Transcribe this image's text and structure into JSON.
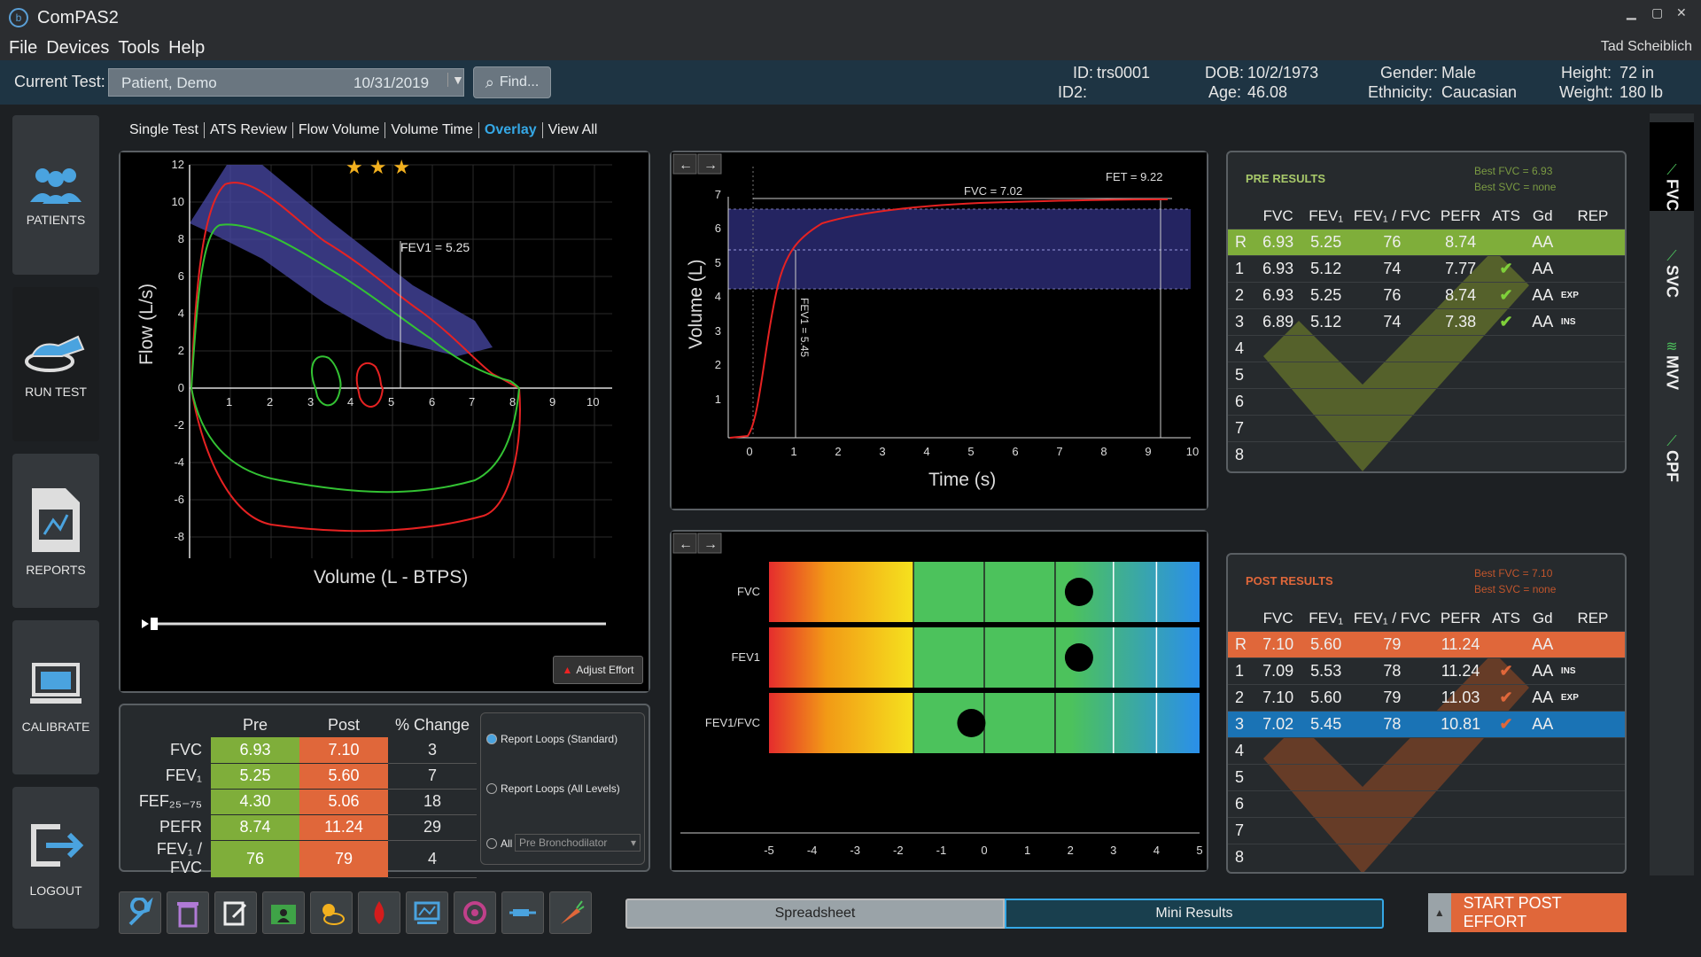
{
  "app": {
    "title": "ComPAS2",
    "user": "Tad Scheiblich"
  },
  "menu": [
    "File",
    "Devices",
    "Tools",
    "Help"
  ],
  "test_selector": {
    "label": "Current Test:",
    "patient": "Patient, Demo",
    "date": "10/31/2019",
    "find_label": "Find..."
  },
  "patient": {
    "id_label": "ID:",
    "id": "trs0001",
    "id2_label": "ID2:",
    "id2": "",
    "dob_label": "DOB:",
    "dob": "10/2/1973",
    "age_label": "Age:",
    "age": "46.08",
    "gender_label": "Gender:",
    "gender": "Male",
    "ethnicity_label": "Ethnicity:",
    "ethnicity": "Caucasian",
    "height_label": "Height:",
    "height": "72 in",
    "weight_label": "Weight:",
    "weight": "180 lb"
  },
  "sidebar": [
    "PATIENTS",
    "RUN TEST",
    "REPORTS",
    "CALIBRATE",
    "LOGOUT"
  ],
  "view_tabs": [
    "Single Test",
    "ATS Review",
    "Flow Volume",
    "Volume Time",
    "Overlay",
    "View All"
  ],
  "active_view_tab": "Overlay",
  "right_tabs": [
    "FVC",
    "SVC",
    "MVV",
    "CPF"
  ],
  "flow_volume": {
    "xlabel": "Volume (L - BTPS)",
    "ylabel": "Flow (L/s)",
    "x_ticks": [
      "1",
      "2",
      "3",
      "4",
      "5",
      "6",
      "7",
      "8",
      "9",
      "10"
    ],
    "y_ticks": [
      "12",
      "10",
      "8",
      "6",
      "4",
      "2",
      "0",
      "-2",
      "-4",
      "-6",
      "-8"
    ],
    "annotation": "FEV1 = 5.25",
    "stars": "★ ★ ★",
    "adjust_label": "Adjust Effort"
  },
  "volume_time": {
    "xlabel": "Time (s)",
    "ylabel": "Volume (L)",
    "x_ticks": [
      "0",
      "1",
      "2",
      "3",
      "4",
      "5",
      "6",
      "7",
      "8",
      "9",
      "10"
    ],
    "y_ticks": [
      "7",
      "6",
      "5",
      "4",
      "3",
      "2",
      "1"
    ],
    "fvc_label": "FVC = 7.02",
    "fet_label": "FET = 9.22",
    "fev1_label": "FEV1 = 5.45"
  },
  "zscore": {
    "rows": [
      "FVC",
      "FEV1",
      "FEV1/FVC"
    ],
    "x_ticks": [
      "-5",
      "-4",
      "-3",
      "-2",
      "-1",
      "0",
      "1",
      "2",
      "3",
      "4",
      "5"
    ],
    "values": [
      2.2,
      2.2,
      -0.3
    ]
  },
  "summary": {
    "headers": [
      "",
      "Pre",
      "Post",
      "% Change"
    ],
    "rows": [
      {
        "name": "FVC",
        "pre": "6.93",
        "post": "7.10",
        "change": "3"
      },
      {
        "name": "FEV₁",
        "pre": "5.25",
        "post": "5.60",
        "change": "7"
      },
      {
        "name": "FEF₂₅₋₇₅",
        "pre": "4.30",
        "post": "5.06",
        "change": "18"
      },
      {
        "name": "PEFR",
        "pre": "8.74",
        "post": "11.24",
        "change": "29"
      },
      {
        "name": "FEV₁ / FVC",
        "pre": "76",
        "post": "79",
        "change": "4"
      }
    ]
  },
  "report_options": {
    "opt1": "Report Loops (Standard)",
    "opt2": "Report Loops (All Levels)",
    "opt3": "All",
    "select": "Pre Bronchodilator"
  },
  "pre_results": {
    "title": "PRE RESULTS",
    "best_fvc": "Best FVC = 6.93",
    "best_svc": "Best SVC = none",
    "headers": [
      "",
      "FVC",
      "FEV₁",
      "FEV₁ / FVC",
      "PEFR",
      "ATS",
      "Gd",
      "REP"
    ],
    "rows": [
      {
        "n": "R",
        "fvc": "6.93",
        "fev1": "5.25",
        "ratio": "76",
        "pefr": "8.74",
        "ats": "",
        "gd": "AA",
        "rep": ""
      },
      {
        "n": "1",
        "fvc": "6.93",
        "fev1": "5.12",
        "ratio": "74",
        "pefr": "7.77",
        "ats": "✔",
        "gd": "AA",
        "rep": ""
      },
      {
        "n": "2",
        "fvc": "6.93",
        "fev1": "5.25",
        "ratio": "76",
        "pefr": "8.74",
        "ats": "✔",
        "gd": "AA",
        "rep": "EXP"
      },
      {
        "n": "3",
        "fvc": "6.89",
        "fev1": "5.12",
        "ratio": "74",
        "pefr": "7.38",
        "ats": "✔",
        "gd": "AA",
        "rep": "INS"
      },
      {
        "n": "4",
        "fvc": "",
        "fev1": "",
        "ratio": "",
        "pefr": "",
        "ats": "",
        "gd": "",
        "rep": ""
      },
      {
        "n": "5",
        "fvc": "",
        "fev1": "",
        "ratio": "",
        "pefr": "",
        "ats": "",
        "gd": "",
        "rep": ""
      },
      {
        "n": "6",
        "fvc": "",
        "fev1": "",
        "ratio": "",
        "pefr": "",
        "ats": "",
        "gd": "",
        "rep": ""
      },
      {
        "n": "7",
        "fvc": "",
        "fev1": "",
        "ratio": "",
        "pefr": "",
        "ats": "",
        "gd": "",
        "rep": ""
      },
      {
        "n": "8",
        "fvc": "",
        "fev1": "",
        "ratio": "",
        "pefr": "",
        "ats": "",
        "gd": "",
        "rep": ""
      }
    ]
  },
  "post_results": {
    "title": "POST RESULTS",
    "best_fvc": "Best FVC = 7.10",
    "best_svc": "Best SVC = none",
    "headers": [
      "",
      "FVC",
      "FEV₁",
      "FEV₁ / FVC",
      "PEFR",
      "ATS",
      "Gd",
      "REP"
    ],
    "rows": [
      {
        "n": "R",
        "fvc": "7.10",
        "fev1": "5.60",
        "ratio": "79",
        "pefr": "11.24",
        "ats": "",
        "gd": "AA",
        "rep": ""
      },
      {
        "n": "1",
        "fvc": "7.09",
        "fev1": "5.53",
        "ratio": "78",
        "pefr": "11.24",
        "ats": "✔",
        "gd": "AA",
        "rep": "INS"
      },
      {
        "n": "2",
        "fvc": "7.10",
        "fev1": "5.60",
        "ratio": "79",
        "pefr": "11.03",
        "ats": "✔",
        "gd": "AA",
        "rep": "EXP"
      },
      {
        "n": "3",
        "fvc": "7.02",
        "fev1": "5.45",
        "ratio": "78",
        "pefr": "10.81",
        "ats": "✔",
        "gd": "AA",
        "rep": ""
      },
      {
        "n": "4",
        "fvc": "",
        "fev1": "",
        "ratio": "",
        "pefr": "",
        "ats": "",
        "gd": "",
        "rep": ""
      },
      {
        "n": "5",
        "fvc": "",
        "fev1": "",
        "ratio": "",
        "pefr": "",
        "ats": "",
        "gd": "",
        "rep": ""
      },
      {
        "n": "6",
        "fvc": "",
        "fev1": "",
        "ratio": "",
        "pefr": "",
        "ats": "",
        "gd": "",
        "rep": ""
      },
      {
        "n": "7",
        "fvc": "",
        "fev1": "",
        "ratio": "",
        "pefr": "",
        "ats": "",
        "gd": "",
        "rep": ""
      },
      {
        "n": "8",
        "fvc": "",
        "fev1": "",
        "ratio": "",
        "pefr": "",
        "ats": "",
        "gd": "",
        "rep": ""
      }
    ]
  },
  "toolbar_icons": [
    "wrench-icon",
    "trash-icon",
    "edit-icon",
    "patient-folder-icon",
    "weather-icon",
    "blood-drop-icon",
    "monitor-chart-icon",
    "reset-icon",
    "inhaler-icon",
    "carrot-icon"
  ],
  "bottom": {
    "spreadsheet": "Spreadsheet",
    "mini_results": "Mini Results",
    "start": "START POST EFFORT"
  },
  "colors": {
    "pre_accent": "#7fae3a",
    "post_accent": "#e0673a",
    "selected_post": "#1a73b5",
    "tab_active": "#35a8e6"
  }
}
